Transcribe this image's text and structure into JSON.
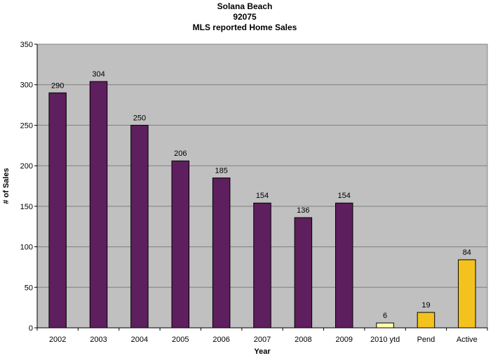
{
  "chart_data": {
    "type": "bar",
    "title_lines": [
      "Solana Beach",
      "92075",
      "MLS reported Home Sales"
    ],
    "xlabel": "Year",
    "ylabel": "# of Sales",
    "ylim": [
      0,
      350
    ],
    "y_ticks": [
      0,
      50,
      100,
      150,
      200,
      250,
      300,
      350
    ],
    "grid": true,
    "legend": "none",
    "categories": [
      "2002",
      "2003",
      "2004",
      "2005",
      "2006",
      "2007",
      "2008",
      "2009",
      "2010 ytd",
      "Pend",
      "Active"
    ],
    "values": [
      290,
      304,
      250,
      206,
      185,
      154,
      136,
      154,
      6,
      19,
      84
    ],
    "data_labels": [
      "290",
      "304",
      "250",
      "206",
      "185",
      "154",
      "136",
      "154",
      "6",
      "19",
      "84"
    ],
    "bar_colors": [
      "#5e1f5e",
      "#5e1f5e",
      "#5e1f5e",
      "#5e1f5e",
      "#5e1f5e",
      "#5e1f5e",
      "#5e1f5e",
      "#5e1f5e",
      "#ffffa8",
      "#f4c21f",
      "#f4c21f"
    ]
  },
  "colors": {
    "plot_background": "#c0c0c0",
    "gridline": "#808080",
    "bar_outline": "#000000"
  }
}
